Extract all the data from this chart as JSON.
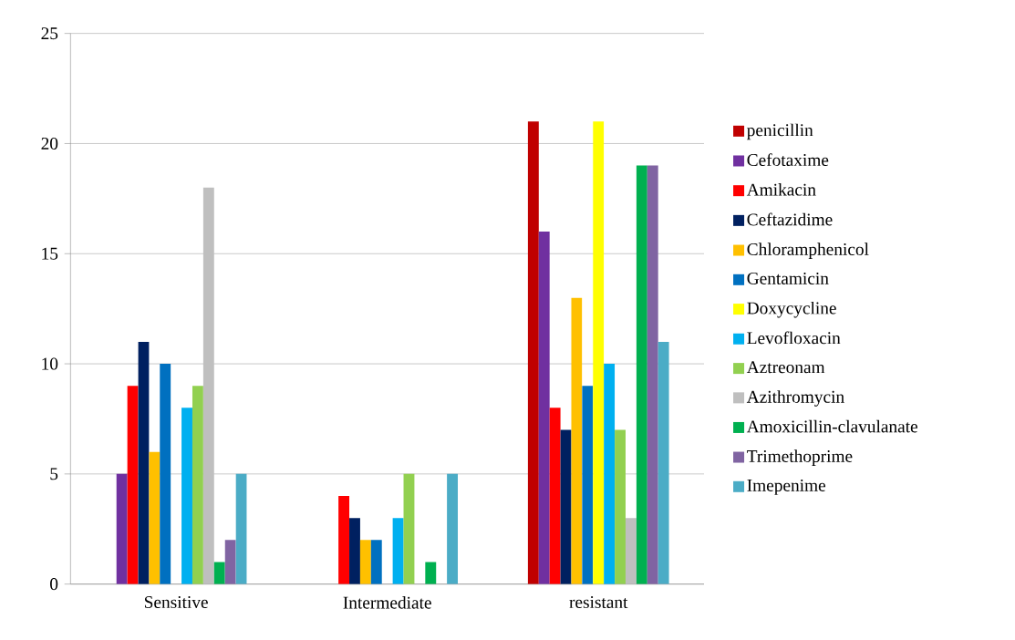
{
  "chart_data": {
    "type": "bar",
    "categories": [
      "Sensitive",
      "Intermediate",
      "resistant"
    ],
    "series": [
      {
        "name": "penicillin",
        "color": "#c00000",
        "values": [
          0,
          0,
          21
        ]
      },
      {
        "name": "Cefotaxime",
        "color": "#7030a0",
        "values": [
          5,
          0,
          16
        ]
      },
      {
        "name": "Amikacin",
        "color": "#ff0000",
        "values": [
          9,
          4,
          8
        ]
      },
      {
        "name": "Ceftazidime",
        "color": "#002060",
        "values": [
          11,
          3,
          7
        ]
      },
      {
        "name": "Chloramphenicol",
        "color": "#ffc000",
        "values": [
          6,
          2,
          13
        ]
      },
      {
        "name": "Gentamicin",
        "color": "#0070c0",
        "values": [
          10,
          2,
          9
        ]
      },
      {
        "name": "Doxycycline",
        "color": "#ffff00",
        "values": [
          0,
          0,
          21
        ]
      },
      {
        "name": "Levofloxacin",
        "color": "#00b0f0",
        "values": [
          8,
          3,
          10
        ]
      },
      {
        "name": "Aztreonam",
        "color": "#92d050",
        "values": [
          9,
          5,
          7
        ]
      },
      {
        "name": "Azithromycin",
        "color": "#bfbfbf",
        "values": [
          18,
          0,
          3
        ]
      },
      {
        "name": "Amoxicillin-clavulanate",
        "color": "#00b050",
        "values": [
          1,
          1,
          19
        ]
      },
      {
        "name": "Trimethoprime",
        "color": "#8064a2",
        "values": [
          2,
          0,
          19
        ]
      },
      {
        "name": "Imepenime",
        "color": "#4bacc6",
        "values": [
          5,
          5,
          11
        ]
      }
    ],
    "ylim": [
      0,
      25
    ],
    "yticks": [
      0,
      5,
      10,
      15,
      20,
      25
    ],
    "grid": "y",
    "legend": "right"
  }
}
